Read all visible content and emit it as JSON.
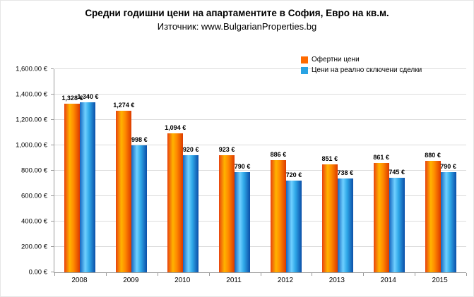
{
  "chart_data": {
    "type": "bar",
    "title": "Средни годишни цени на апартаментите в София, Евро на кв.м.",
    "subtitle": "Източник: www.BulgarianProperties.bg",
    "categories": [
      "2008",
      "2009",
      "2010",
      "2011",
      "2012",
      "2013",
      "2014",
      "2015"
    ],
    "series": [
      {
        "name": "Офертни цени",
        "values": [
          1328,
          1274,
          1094,
          923,
          886,
          851,
          861,
          880
        ],
        "legend_color": "#FF6A00",
        "gradient": [
          "#E8420E",
          "#FFB300",
          "#FF8A00",
          "#DC3A00"
        ]
      },
      {
        "name": "Цени на реално сключени сделки",
        "values": [
          1340,
          998,
          920,
          790,
          720,
          738,
          745,
          790
        ],
        "legend_color": "#29A3E3",
        "gradient": [
          "#1565C0",
          "#6FD0FF",
          "#2FA8E8",
          "#0B4FA8"
        ]
      }
    ],
    "xlabel": "",
    "ylabel": "",
    "ylim": [
      0,
      1600
    ],
    "ytick_step": 200,
    "ytick_suffix": ".00 €",
    "value_suffix": " €",
    "grid": true,
    "legend_position": "top-right",
    "axis_color": "#9a9a9a",
    "gridline_color": "#dcdcdc"
  }
}
